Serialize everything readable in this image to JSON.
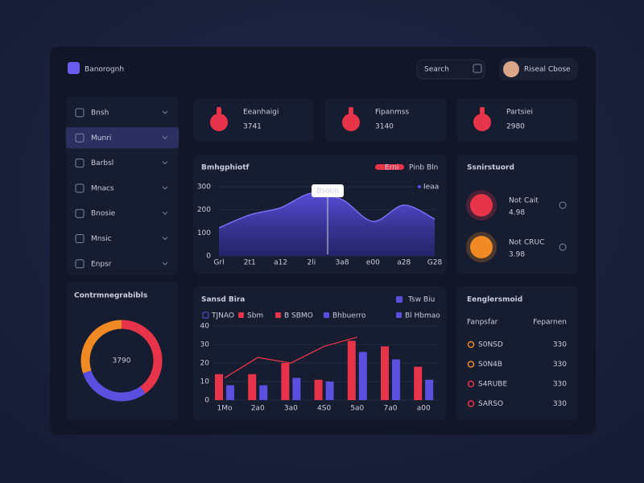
{
  "header": {
    "brand": "Banorognh",
    "search": "Search",
    "user": "Riseal Cbose"
  },
  "sidebar": {
    "items": [
      "Bnsh",
      "Munri",
      "Barbsl",
      "Mnacs",
      "Bnosie",
      "Mnsic",
      "Enpsr"
    ],
    "active": 1
  },
  "stats": [
    {
      "label": "Eeanhaigi",
      "value": "3741"
    },
    {
      "label": "Fipanmss",
      "value": "3140"
    },
    {
      "label": "Partsiei",
      "value": "2980"
    }
  ],
  "area_chart": {
    "type": "area",
    "title": "Bmhgphiotf",
    "legend": [
      {
        "name": "Erni",
        "color": "#e8344a"
      },
      {
        "name": "Pinb Bln",
        "color": "#3fbf7f"
      }
    ],
    "series_name": "Ieaa",
    "tooltip": "Bsoon",
    "color": "#5b4fe0",
    "categories": [
      "Grl",
      "2t1",
      "a12",
      "2li",
      "3a8",
      "e00",
      "a28",
      "G28"
    ],
    "values": [
      122,
      178,
      209,
      272,
      244,
      150,
      220,
      160
    ],
    "ylim": [
      0,
      300
    ],
    "yticks": [
      0,
      100,
      200,
      300
    ]
  },
  "donut": {
    "type": "pie",
    "title": "Contrmnegrabibls",
    "center_label": "3790",
    "values": [
      40,
      30,
      30
    ],
    "colors": [
      "#e8344a",
      "#5b4fe0",
      "#f08a24"
    ]
  },
  "bar_chart": {
    "type": "bar",
    "title": "Sansd Bira",
    "top_legend": "Tsw Biu",
    "legend": [
      {
        "name": "TJNAO",
        "color": "#5b4fe0"
      },
      {
        "name": "Sbm",
        "color": "#e8344a"
      },
      {
        "name": "B SBMO",
        "color": "#e8344a"
      },
      {
        "name": "Bhbuerro",
        "color": "#5b4fe0"
      },
      {
        "name": "Bl Hbmao",
        "color": "#5b4fe0"
      }
    ],
    "categories": [
      "1Mo",
      "2a0",
      "3a0",
      "4S0",
      "5a0",
      "7a0",
      "a00"
    ],
    "series": [
      {
        "color": "#e8344a",
        "values": [
          14,
          14,
          20,
          11,
          32,
          29,
          18
        ]
      },
      {
        "color": "#5b4fe0",
        "values": [
          8,
          8,
          12,
          10,
          26,
          22,
          11
        ]
      }
    ],
    "line": {
      "color": "#e8344a",
      "values": [
        12,
        23,
        20,
        29,
        34,
        null,
        null
      ]
    },
    "ylim": [
      0,
      40
    ],
    "yticks": [
      0,
      10,
      20,
      30,
      40
    ]
  },
  "status": {
    "title": "Ssnirstuord",
    "items": [
      {
        "prefix": "Not",
        "highlight": "Cait",
        "value": "4.98",
        "color": "#e8344a"
      },
      {
        "prefix": "Not",
        "highlight": "CRUC",
        "value": "3.98",
        "color": "#f08a24"
      }
    ]
  },
  "table": {
    "title": "Eenglersmoid",
    "columns": [
      "Fanpsfar",
      "Feparnen"
    ],
    "rows": [
      [
        "S0NSD",
        "330"
      ],
      [
        "S0N4B",
        "330"
      ],
      [
        "S4RUBE",
        "330"
      ],
      [
        "SARSO",
        "330"
      ]
    ],
    "icon_colors": [
      "#f08a24",
      "#f08a24",
      "#e8344a",
      "#e8344a"
    ]
  }
}
